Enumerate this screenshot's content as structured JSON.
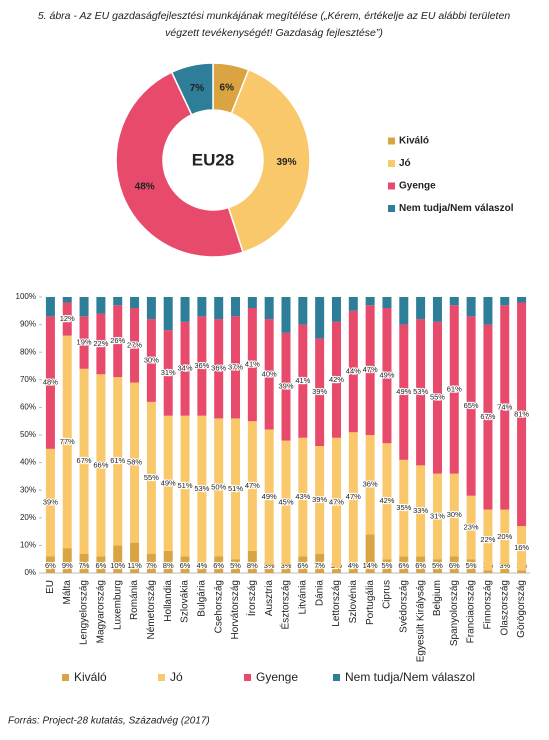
{
  "title_lines": [
    "5. ábra - Az EU gazdaságfejlesztési munkájának megítélése („Kérem, értékelje az EU alábbi területen",
    "végzett tevékenységét! Gazdaság fejlesztése”)"
  ],
  "source": "Forrás: Project-28 kutatás, Századvég (2017)",
  "chart_data": [
    {
      "type": "pie",
      "center_label": "EU28",
      "categories": [
        "Kiváló",
        "Jó",
        "Gyenge",
        "Nem tudja/Nem válaszol"
      ],
      "values": [
        6,
        39,
        48,
        7
      ],
      "value_labels": [
        "6%",
        "39%",
        "48%",
        "7%"
      ],
      "colors": [
        "#d9a441",
        "#f9c86a",
        "#e84a6b",
        "#2e7d99"
      ],
      "legend": "right"
    },
    {
      "type": "bar",
      "stacked": true,
      "grid": false,
      "legend": "bottom",
      "categories": [
        "EU",
        "Málta",
        "Lengyelország",
        "Magyarország",
        "Luxemburg",
        "Románia",
        "Németország",
        "Hollandia",
        "Szlovákia",
        "Bulgária",
        "Csehország",
        "Horvátország",
        "Írország",
        "Ausztria",
        "Észtország",
        "Litvánia",
        "Dánia",
        "Lettország",
        "Szlovénia",
        "Portugália",
        "Ciprus",
        "Svédország",
        "Egyesült Királyság",
        "Belgium",
        "Spanyolország",
        "Franciaország",
        "Finnország",
        "Olaszország",
        "Görögország"
      ],
      "series": [
        {
          "name": "Kiváló",
          "color": "#d9a441",
          "values": [
            6,
            9,
            7,
            6,
            10,
            11,
            7,
            8,
            6,
            4,
            6,
            5,
            8,
            3,
            3,
            6,
            7,
            2,
            4,
            14,
            5,
            6,
            6,
            5,
            6,
            5,
            1,
            3,
            1
          ],
          "value_labels": [
            "6%",
            "9%",
            "7%",
            "6%",
            "10%",
            "11%",
            "7%",
            "8%",
            "6%",
            "4%",
            "6%",
            "5%",
            "8%",
            "3%",
            "3%",
            "6%",
            "7%",
            "2%",
            "4%",
            "14%",
            "5%",
            "6%",
            "6%",
            "5%",
            "6%",
            "5%",
            "1%",
            "3%",
            "1%"
          ]
        },
        {
          "name": "Jó",
          "color": "#f9c86a",
          "values": [
            39,
            77,
            67,
            66,
            61,
            58,
            55,
            49,
            51,
            53,
            50,
            51,
            47,
            49,
            45,
            43,
            39,
            47,
            47,
            36,
            42,
            35,
            33,
            31,
            30,
            23,
            22,
            20,
            16
          ],
          "value_labels": [
            "39%",
            "77%",
            "67%",
            "66%",
            "61%",
            "58%",
            "55%",
            "49%",
            "51%",
            "53%",
            "50%",
            "51%",
            "47%",
            "49%",
            "45%",
            "43%",
            "39%",
            "47%",
            "47%",
            "36%",
            "42%",
            "35%",
            "33%",
            "31%",
            "30%",
            "23%",
            "22%",
            "20%",
            "16%"
          ]
        },
        {
          "name": "Gyenge",
          "color": "#e84a6b",
          "values": [
            48,
            12,
            19,
            22,
            26,
            27,
            30,
            31,
            34,
            36,
            36,
            37,
            41,
            40,
            39,
            41,
            39,
            42,
            44,
            47,
            49,
            49,
            53,
            55,
            61,
            65,
            67,
            74,
            81
          ],
          "value_labels": [
            "48%",
            "12%",
            "19%",
            "22%",
            "26%",
            "27%",
            "30%",
            "31%",
            "34%",
            "36%",
            "36%",
            "37%",
            "41%",
            "40%",
            "39%",
            "41%",
            "39%",
            "42%",
            "44%",
            "47%",
            "49%",
            "49%",
            "53%",
            "55%",
            "61%",
            "65%",
            "67%",
            "74%",
            "81%"
          ]
        },
        {
          "name": "Nem tudja/Nem válaszol",
          "color": "#2e7d99",
          "values": [
            7,
            2,
            7,
            6,
            3,
            4,
            8,
            12,
            9,
            7,
            8,
            7,
            4,
            8,
            13,
            10,
            15,
            9,
            5,
            3,
            4,
            10,
            8,
            9,
            3,
            7,
            10,
            3,
            2
          ]
        }
      ],
      "ylim": [
        0,
        100
      ],
      "yticks": [
        {
          "value": 0,
          "label": "0%"
        },
        {
          "value": 10,
          "label": "10%"
        },
        {
          "value": 20,
          "label": "20%"
        },
        {
          "value": 30,
          "label": "30%"
        },
        {
          "value": 40,
          "label": "40%"
        },
        {
          "value": 50,
          "label": "50%"
        },
        {
          "value": 60,
          "label": "60%"
        },
        {
          "value": 70,
          "label": "70%"
        },
        {
          "value": 80,
          "label": "80%"
        },
        {
          "value": 90,
          "label": "90%"
        },
        {
          "value": 100,
          "label": "100%"
        }
      ]
    }
  ]
}
